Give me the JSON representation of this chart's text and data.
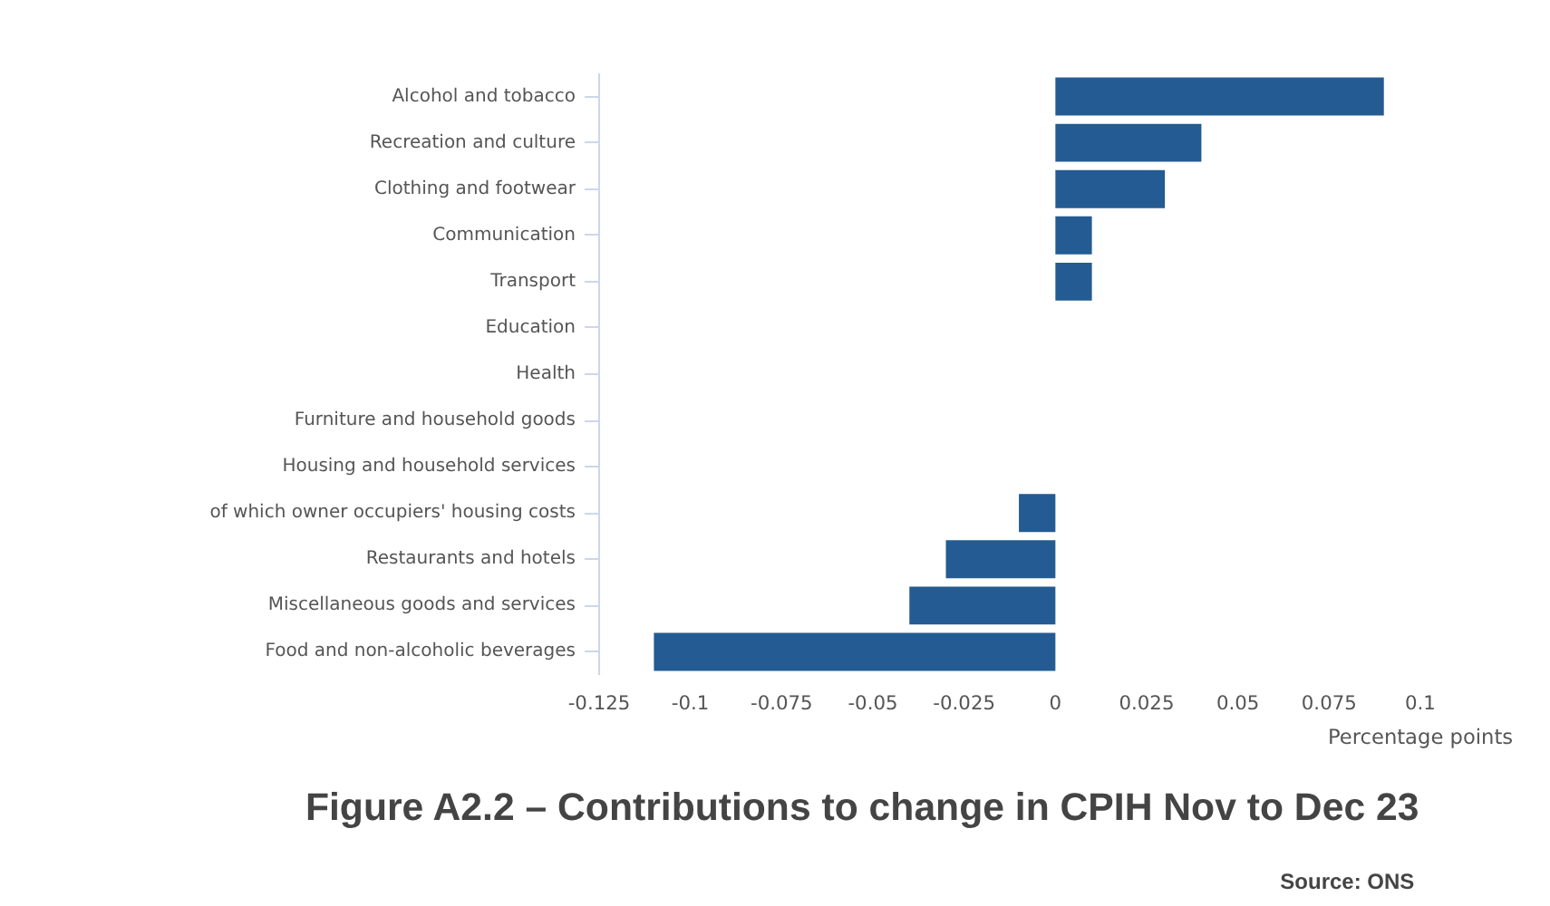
{
  "chart_data": {
    "type": "bar",
    "orientation": "horizontal",
    "title": "Figure A2.2 – Contributions to change in CPIH Nov to Dec 23",
    "xlabel": "Percentage points",
    "categories": [
      "Alcohol and tobacco",
      "Recreation and culture",
      "Clothing and footwear",
      "Communication",
      "Transport",
      "Education",
      "Health",
      "Furniture and household goods",
      "Housing and household services",
      "of which owner occupiers' housing costs",
      "Restaurants and hotels",
      "Miscellaneous goods and services",
      "Food and non-alcoholic beverages"
    ],
    "values": [
      0.09,
      0.04,
      0.03,
      0.01,
      0.01,
      0,
      0,
      0,
      0,
      -0.01,
      -0.03,
      -0.04,
      -0.11
    ],
    "color": "#235b92",
    "xlim": [
      -0.125,
      0.1
    ],
    "xticks": [
      -0.125,
      -0.1,
      -0.075,
      -0.05,
      -0.025,
      0,
      0.025,
      0.05,
      0.075,
      0.1
    ],
    "annotations": [
      "Source:  ONS"
    ]
  }
}
